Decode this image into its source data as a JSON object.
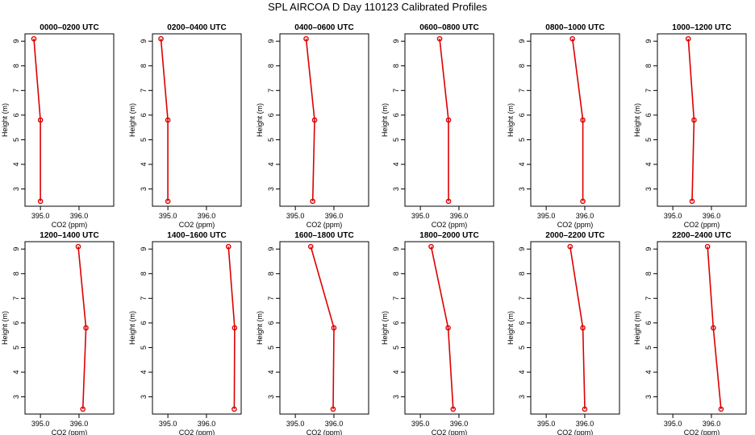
{
  "title": "SPL AIRCOA D  Day 110123  Calibrated Profiles",
  "colors": {
    "series": "#dd0000",
    "axis": "#000000",
    "background": "#ffffff"
  },
  "chart_data": [
    {
      "type": "line",
      "title": "0000–0200 UTC",
      "xlabel": "CO2 (ppm)",
      "ylabel": "Height (m)",
      "xlim": [
        394.6,
        396.9
      ],
      "ylim": [
        2.3,
        9.3
      ],
      "xticks": [
        395.0,
        396.0
      ],
      "xtick_labels": [
        "395.0",
        "396.0"
      ],
      "yticks": [
        3,
        4,
        5,
        6,
        7,
        8,
        9
      ],
      "series": [
        {
          "name": "profile",
          "x": [
            395.0,
            395.0,
            394.83
          ],
          "y": [
            2.5,
            5.8,
            9.1
          ]
        }
      ]
    },
    {
      "type": "line",
      "title": "0200–0400 UTC",
      "xlabel": "CO2 (ppm)",
      "ylabel": "Height (m)",
      "xlim": [
        394.6,
        396.9
      ],
      "ylim": [
        2.3,
        9.3
      ],
      "xticks": [
        395.0,
        396.0
      ],
      "xtick_labels": [
        "395.0",
        "396.0"
      ],
      "yticks": [
        3,
        4,
        5,
        6,
        7,
        8,
        9
      ],
      "series": [
        {
          "name": "profile",
          "x": [
            395.0,
            395.0,
            394.82
          ],
          "y": [
            2.5,
            5.8,
            9.1
          ]
        }
      ]
    },
    {
      "type": "line",
      "title": "0400–0600 UTC",
      "xlabel": "CO2 (ppm)",
      "ylabel": "Height (m)",
      "xlim": [
        394.6,
        396.9
      ],
      "ylim": [
        2.3,
        9.3
      ],
      "xticks": [
        395.0,
        396.0
      ],
      "xtick_labels": [
        "395.0",
        "396.0"
      ],
      "yticks": [
        3,
        4,
        5,
        6,
        7,
        8,
        9
      ],
      "series": [
        {
          "name": "profile",
          "x": [
            395.45,
            395.5,
            395.28
          ],
          "y": [
            2.5,
            5.8,
            9.1
          ]
        }
      ]
    },
    {
      "type": "line",
      "title": "0600–0800 UTC",
      "xlabel": "CO2 (ppm)",
      "ylabel": "Height (m)",
      "xlim": [
        394.6,
        396.9
      ],
      "ylim": [
        2.3,
        9.3
      ],
      "xticks": [
        395.0,
        396.0
      ],
      "xtick_labels": [
        "395.0",
        "396.0"
      ],
      "yticks": [
        3,
        4,
        5,
        6,
        7,
        8,
        9
      ],
      "series": [
        {
          "name": "profile",
          "x": [
            395.73,
            395.73,
            395.5
          ],
          "y": [
            2.5,
            5.8,
            9.1
          ]
        }
      ]
    },
    {
      "type": "line",
      "title": "0800–1000 UTC",
      "xlabel": "CO2 (ppm)",
      "ylabel": "Height (m)",
      "xlim": [
        394.6,
        396.9
      ],
      "ylim": [
        2.3,
        9.3
      ],
      "xticks": [
        395.0,
        396.0
      ],
      "xtick_labels": [
        "395.0",
        "396.0"
      ],
      "yticks": [
        3,
        4,
        5,
        6,
        7,
        8,
        9
      ],
      "series": [
        {
          "name": "profile",
          "x": [
            395.95,
            395.95,
            395.68
          ],
          "y": [
            2.5,
            5.8,
            9.1
          ]
        }
      ]
    },
    {
      "type": "line",
      "title": "1000–1200 UTC",
      "xlabel": "CO2 (ppm)",
      "ylabel": "Height (m)",
      "xlim": [
        394.6,
        396.9
      ],
      "ylim": [
        2.3,
        9.3
      ],
      "xticks": [
        395.0,
        396.0
      ],
      "xtick_labels": [
        "395.0",
        "396.0"
      ],
      "yticks": [
        3,
        4,
        5,
        6,
        7,
        8,
        9
      ],
      "series": [
        {
          "name": "profile",
          "x": [
            395.5,
            395.55,
            395.4
          ],
          "y": [
            2.5,
            5.8,
            9.1
          ]
        }
      ]
    },
    {
      "type": "line",
      "title": "1200–1400 UTC",
      "xlabel": "CO2 (ppm)",
      "ylabel": "Height (m)",
      "xlim": [
        394.6,
        396.9
      ],
      "ylim": [
        2.3,
        9.3
      ],
      "xticks": [
        395.0,
        396.0
      ],
      "xtick_labels": [
        "395.0",
        "396.0"
      ],
      "yticks": [
        3,
        4,
        5,
        6,
        7,
        8,
        9
      ],
      "series": [
        {
          "name": "profile",
          "x": [
            396.1,
            396.18,
            395.98
          ],
          "y": [
            2.5,
            5.8,
            9.1
          ]
        }
      ]
    },
    {
      "type": "line",
      "title": "1400–1600 UTC",
      "xlabel": "CO2 (ppm)",
      "ylabel": "Height (m)",
      "xlim": [
        394.6,
        396.9
      ],
      "ylim": [
        2.3,
        9.3
      ],
      "xticks": [
        395.0,
        396.0
      ],
      "xtick_labels": [
        "395.0",
        "396.0"
      ],
      "yticks": [
        3,
        4,
        5,
        6,
        7,
        8,
        9
      ],
      "series": [
        {
          "name": "profile",
          "x": [
            396.72,
            396.73,
            396.57
          ],
          "y": [
            2.5,
            5.8,
            9.1
          ]
        }
      ]
    },
    {
      "type": "line",
      "title": "1600–1800 UTC",
      "xlabel": "CO2 (ppm)",
      "ylabel": "Height (m)",
      "xlim": [
        394.6,
        396.9
      ],
      "ylim": [
        2.3,
        9.3
      ],
      "xticks": [
        395.0,
        396.0
      ],
      "xtick_labels": [
        "395.0",
        "396.0"
      ],
      "yticks": [
        3,
        4,
        5,
        6,
        7,
        8,
        9
      ],
      "series": [
        {
          "name": "profile",
          "x": [
            395.98,
            396.0,
            395.4
          ],
          "y": [
            2.5,
            5.8,
            9.1
          ]
        }
      ]
    },
    {
      "type": "line",
      "title": "1800–2000 UTC",
      "xlabel": "CO2 (ppm)",
      "ylabel": "Height (m)",
      "xlim": [
        394.6,
        396.9
      ],
      "ylim": [
        2.3,
        9.3
      ],
      "xticks": [
        395.0,
        396.0
      ],
      "xtick_labels": [
        "395.0",
        "396.0"
      ],
      "yticks": [
        3,
        4,
        5,
        6,
        7,
        8,
        9
      ],
      "series": [
        {
          "name": "profile",
          "x": [
            395.85,
            395.72,
            395.28
          ],
          "y": [
            2.5,
            5.8,
            9.1
          ]
        }
      ]
    },
    {
      "type": "line",
      "title": "2000–2200 UTC",
      "xlabel": "CO2 (ppm)",
      "ylabel": "Height (m)",
      "xlim": [
        394.6,
        396.9
      ],
      "ylim": [
        2.3,
        9.3
      ],
      "xticks": [
        395.0,
        396.0
      ],
      "xtick_labels": [
        "395.0",
        "396.0"
      ],
      "yticks": [
        3,
        4,
        5,
        6,
        7,
        8,
        9
      ],
      "series": [
        {
          "name": "profile",
          "x": [
            396.0,
            395.95,
            395.62
          ],
          "y": [
            2.5,
            5.8,
            9.1
          ]
        }
      ]
    },
    {
      "type": "line",
      "title": "2200–2400 UTC",
      "xlabel": "CO2 (ppm)",
      "ylabel": "Height (m)",
      "xlim": [
        394.6,
        396.9
      ],
      "ylim": [
        2.3,
        9.3
      ],
      "xticks": [
        395.0,
        396.0
      ],
      "xtick_labels": [
        "395.0",
        "396.0"
      ],
      "yticks": [
        3,
        4,
        5,
        6,
        7,
        8,
        9
      ],
      "series": [
        {
          "name": "profile",
          "x": [
            396.25,
            396.05,
            395.9
          ],
          "y": [
            2.5,
            5.8,
            9.1
          ]
        }
      ]
    }
  ]
}
